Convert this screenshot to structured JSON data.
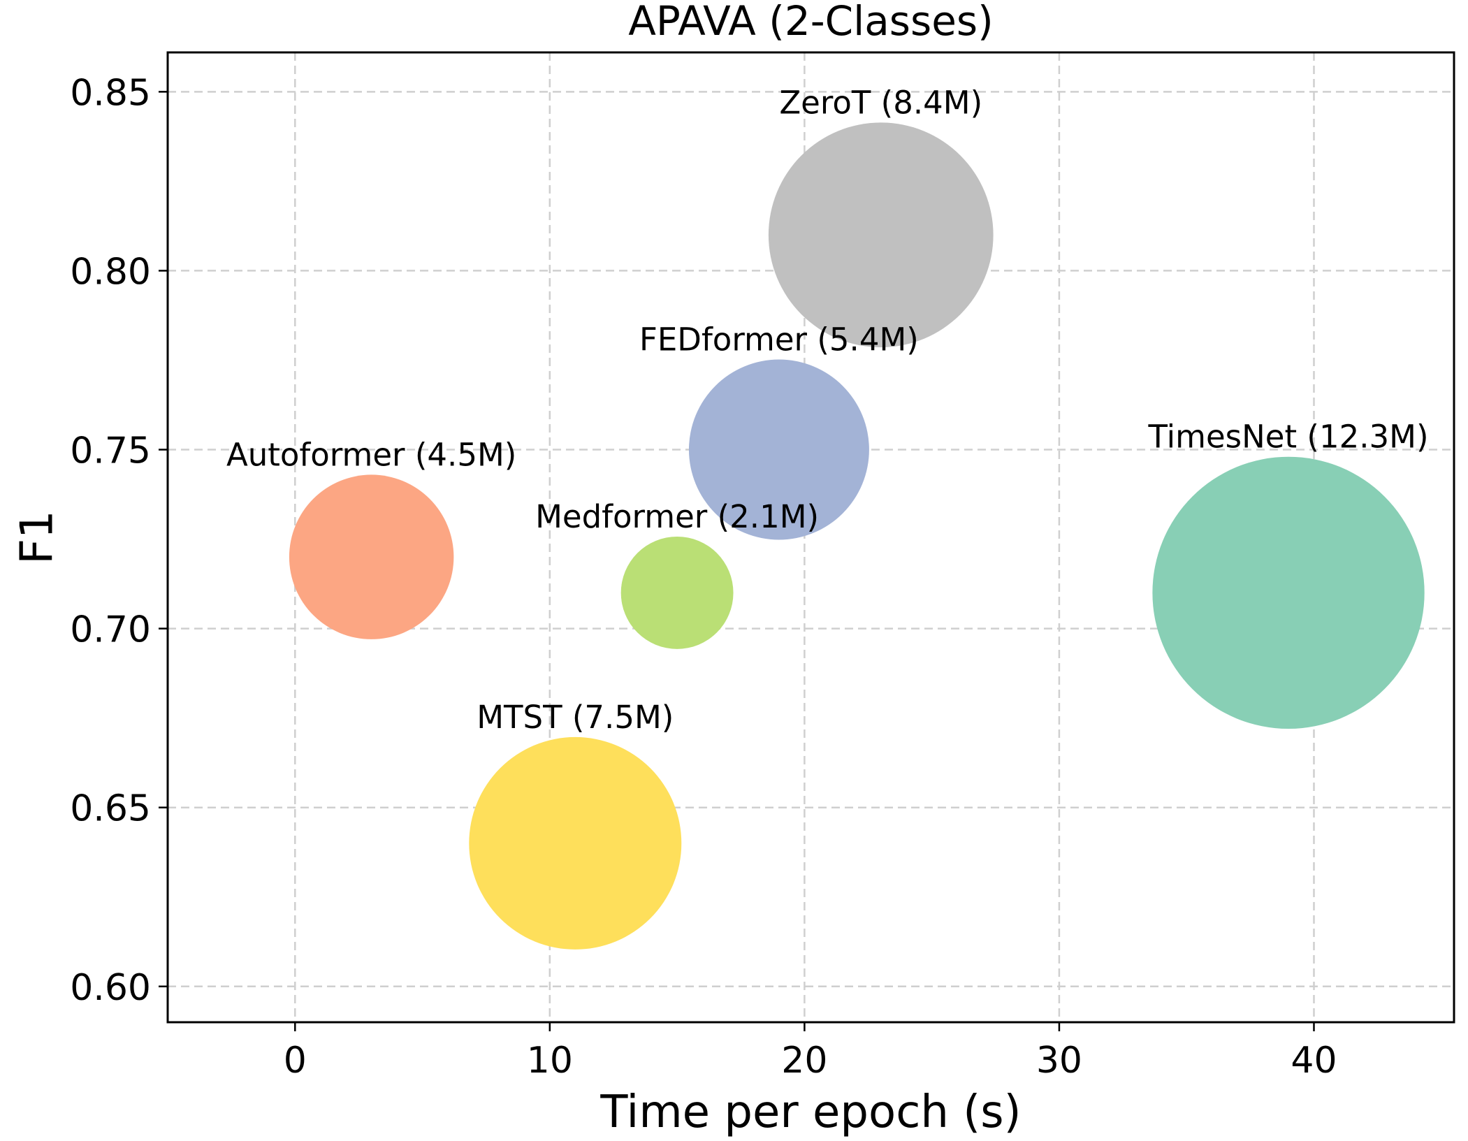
{
  "chart_data": {
    "type": "scatter",
    "variant": "bubble",
    "title": "APAVA (2-Classes)",
    "xlabel": "Time per epoch (s)",
    "ylabel": "F1",
    "xlim": [
      -5,
      45.5
    ],
    "ylim": [
      0.59,
      0.861
    ],
    "xticks": [
      0,
      10,
      20,
      30,
      40
    ],
    "xtick_labels": [
      "0",
      "10",
      "20",
      "30",
      "40"
    ],
    "yticks": [
      0.6,
      0.65,
      0.7,
      0.75,
      0.8,
      0.85
    ],
    "ytick_labels": [
      "0.60",
      "0.65",
      "0.70",
      "0.75",
      "0.80",
      "0.85"
    ],
    "grid": true,
    "legend": "none",
    "size_encoding": "parameters (M)",
    "points": [
      {
        "label": "ZeroT (8.4M)",
        "x": 23,
        "y": 0.81,
        "size": 8.4,
        "color": "#c0c0c0"
      },
      {
        "label": "FEDformer (5.4M)",
        "x": 19,
        "y": 0.75,
        "size": 5.4,
        "color": "#a3b3d6"
      },
      {
        "label": "TimesNet (12.3M)",
        "x": 39,
        "y": 0.71,
        "size": 12.3,
        "color": "#88cfb5"
      },
      {
        "label": "Autoformer (4.5M)",
        "x": 3,
        "y": 0.72,
        "size": 4.5,
        "color": "#fca683"
      },
      {
        "label": "Medformer (2.1M)",
        "x": 15,
        "y": 0.71,
        "size": 2.1,
        "color": "#badf75"
      },
      {
        "label": "MTST (7.5M)",
        "x": 11,
        "y": 0.64,
        "size": 7.5,
        "color": "#fedf5b"
      }
    ]
  }
}
